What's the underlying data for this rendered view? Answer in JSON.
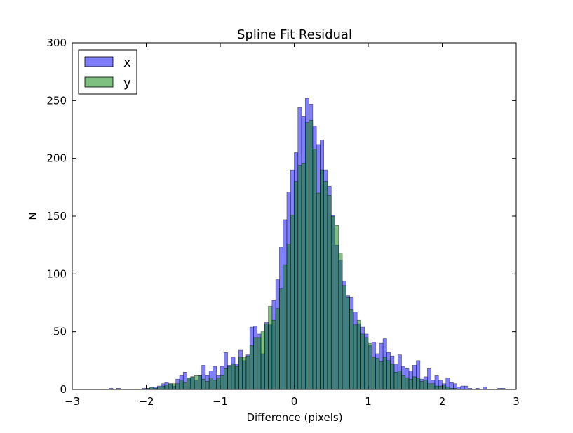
{
  "chart_data": {
    "type": "bar",
    "title": "Spline Fit Residual",
    "xlabel": "Difference (pixels)",
    "ylabel": "N",
    "xlim": [
      -3,
      3
    ],
    "ylim": [
      0,
      300
    ],
    "xticks": [
      "−3",
      "−2",
      "−1",
      "0",
      "1",
      "2",
      "3"
    ],
    "yticks": [
      "0",
      "50",
      "100",
      "150",
      "200",
      "250",
      "300"
    ],
    "grid": false,
    "legend_position": "top-left",
    "bin_width": 0.05,
    "series": [
      {
        "name": "x",
        "color": "#0000ff",
        "alpha": 0.5,
        "bins": [
          [
            -2.5,
            1
          ],
          [
            -2.4,
            1
          ],
          [
            -2.05,
            1
          ],
          [
            -2.0,
            1
          ],
          [
            -1.95,
            2
          ],
          [
            -1.9,
            2
          ],
          [
            -1.85,
            3
          ],
          [
            -1.8,
            5
          ],
          [
            -1.75,
            6
          ],
          [
            -1.7,
            5
          ],
          [
            -1.65,
            3
          ],
          [
            -1.6,
            9
          ],
          [
            -1.55,
            12
          ],
          [
            -1.5,
            15
          ],
          [
            -1.45,
            10
          ],
          [
            -1.4,
            11
          ],
          [
            -1.35,
            8
          ],
          [
            -1.3,
            12
          ],
          [
            -1.25,
            21
          ],
          [
            -1.2,
            12
          ],
          [
            -1.15,
            16
          ],
          [
            -1.1,
            20
          ],
          [
            -1.05,
            12
          ],
          [
            -1.0,
            20
          ],
          [
            -0.95,
            32
          ],
          [
            -0.9,
            21
          ],
          [
            -0.85,
            28
          ],
          [
            -0.8,
            22
          ],
          [
            -0.75,
            34
          ],
          [
            -0.7,
            25
          ],
          [
            -0.65,
            30
          ],
          [
            -0.6,
            54
          ],
          [
            -0.55,
            55
          ],
          [
            -0.5,
            48
          ],
          [
            -0.45,
            31
          ],
          [
            -0.4,
            58
          ],
          [
            -0.35,
            56
          ],
          [
            -0.3,
            77
          ],
          [
            -0.25,
            95
          ],
          [
            -0.2,
            123
          ],
          [
            -0.15,
            147
          ],
          [
            -0.1,
            171
          ],
          [
            -0.05,
            190
          ],
          [
            0.0,
            205
          ],
          [
            0.05,
            244
          ],
          [
            0.1,
            236
          ],
          [
            0.15,
            252
          ],
          [
            0.2,
            247
          ],
          [
            0.25,
            228
          ],
          [
            0.3,
            212
          ],
          [
            0.35,
            216
          ],
          [
            0.4,
            190
          ],
          [
            0.45,
            176
          ],
          [
            0.5,
            151
          ],
          [
            0.55,
            125
          ],
          [
            0.6,
            112
          ],
          [
            0.65,
            94
          ],
          [
            0.7,
            81
          ],
          [
            0.75,
            80
          ],
          [
            0.8,
            67
          ],
          [
            0.85,
            57
          ],
          [
            0.9,
            54
          ],
          [
            0.95,
            48
          ],
          [
            1.0,
            38
          ],
          [
            1.05,
            41
          ],
          [
            1.1,
            31
          ],
          [
            1.15,
            40
          ],
          [
            1.2,
            44
          ],
          [
            1.25,
            32
          ],
          [
            1.3,
            29
          ],
          [
            1.35,
            22
          ],
          [
            1.4,
            30
          ],
          [
            1.45,
            20
          ],
          [
            1.5,
            18
          ],
          [
            1.55,
            16
          ],
          [
            1.6,
            21
          ],
          [
            1.65,
            25
          ],
          [
            1.7,
            9
          ],
          [
            1.75,
            11
          ],
          [
            1.8,
            18
          ],
          [
            1.85,
            8
          ],
          [
            1.9,
            12
          ],
          [
            1.95,
            8
          ],
          [
            2.0,
            5
          ],
          [
            2.05,
            10
          ],
          [
            2.1,
            6
          ],
          [
            2.15,
            5
          ],
          [
            2.2,
            2
          ],
          [
            2.25,
            3
          ],
          [
            2.3,
            3
          ],
          [
            2.35,
            1
          ],
          [
            2.45,
            1
          ],
          [
            2.55,
            2
          ],
          [
            2.75,
            1
          ],
          [
            2.8,
            1
          ]
        ]
      },
      {
        "name": "y",
        "color": "#008000",
        "alpha": 0.5,
        "bins": [
          [
            -2.0,
            1
          ],
          [
            -1.95,
            2
          ],
          [
            -1.9,
            1
          ],
          [
            -1.85,
            2
          ],
          [
            -1.8,
            3
          ],
          [
            -1.75,
            4
          ],
          [
            -1.7,
            5
          ],
          [
            -1.65,
            5
          ],
          [
            -1.6,
            5
          ],
          [
            -1.55,
            8
          ],
          [
            -1.5,
            6
          ],
          [
            -1.45,
            10
          ],
          [
            -1.4,
            11
          ],
          [
            -1.35,
            12
          ],
          [
            -1.3,
            12
          ],
          [
            -1.25,
            9
          ],
          [
            -1.2,
            7
          ],
          [
            -1.15,
            10
          ],
          [
            -1.1,
            8
          ],
          [
            -1.05,
            10
          ],
          [
            -1.0,
            12
          ],
          [
            -0.95,
            18
          ],
          [
            -0.9,
            20
          ],
          [
            -0.85,
            22
          ],
          [
            -0.8,
            20
          ],
          [
            -0.75,
            28
          ],
          [
            -0.7,
            28
          ],
          [
            -0.65,
            29
          ],
          [
            -0.6,
            38
          ],
          [
            -0.55,
            45
          ],
          [
            -0.5,
            45
          ],
          [
            -0.45,
            50
          ],
          [
            -0.4,
            57
          ],
          [
            -0.35,
            72
          ],
          [
            -0.3,
            60
          ],
          [
            -0.25,
            70
          ],
          [
            -0.2,
            87
          ],
          [
            -0.15,
            108
          ],
          [
            -0.1,
            126
          ],
          [
            -0.05,
            151
          ],
          [
            0.0,
            180
          ],
          [
            0.05,
            194
          ],
          [
            0.1,
            196
          ],
          [
            0.15,
            231
          ],
          [
            0.2,
            233
          ],
          [
            0.25,
            208
          ],
          [
            0.3,
            170
          ],
          [
            0.35,
            190
          ],
          [
            0.4,
            180
          ],
          [
            0.45,
            168
          ],
          [
            0.5,
            150
          ],
          [
            0.55,
            142
          ],
          [
            0.6,
            118
          ],
          [
            0.65,
            90
          ],
          [
            0.7,
            80
          ],
          [
            0.75,
            69
          ],
          [
            0.8,
            56
          ],
          [
            0.85,
            60
          ],
          [
            0.9,
            48
          ],
          [
            0.95,
            45
          ],
          [
            1.0,
            40
          ],
          [
            1.05,
            28
          ],
          [
            1.1,
            27
          ],
          [
            1.15,
            24
          ],
          [
            1.2,
            28
          ],
          [
            1.25,
            25
          ],
          [
            1.3,
            22
          ],
          [
            1.35,
            15
          ],
          [
            1.4,
            16
          ],
          [
            1.45,
            12
          ],
          [
            1.5,
            10
          ],
          [
            1.55,
            9
          ],
          [
            1.6,
            11
          ],
          [
            1.65,
            10
          ],
          [
            1.7,
            7
          ],
          [
            1.75,
            8
          ],
          [
            1.8,
            5
          ],
          [
            1.85,
            5
          ],
          [
            1.9,
            3
          ],
          [
            1.95,
            3
          ],
          [
            2.0,
            4
          ],
          [
            2.05,
            2
          ],
          [
            2.1,
            1
          ],
          [
            2.15,
            1
          ]
        ]
      }
    ]
  }
}
